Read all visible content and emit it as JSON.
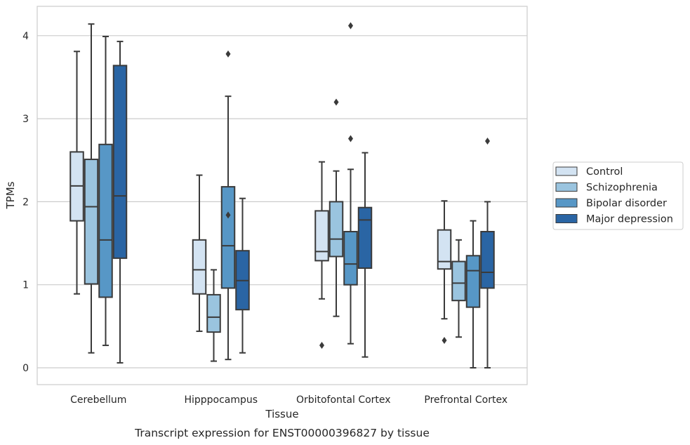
{
  "chart_data": {
    "type": "boxplot",
    "caption": "Transcript expression for ENST00000396827 by tissue",
    "xlabel": "Tissue",
    "ylabel": "TPMs",
    "ylim": [
      -0.2,
      4.37
    ],
    "yticks": [
      0,
      1,
      2,
      3,
      4
    ],
    "grid": "horizontal",
    "legend_position": "right",
    "categories": [
      "Cerebellum",
      "Hipppocampus",
      "Orbitofontal Cortex",
      "Prefrontal Cortex"
    ],
    "series": [
      {
        "name": "Control",
        "color": "#d3e3f2",
        "boxes": [
          {
            "whislo": 0.89,
            "q1": 1.77,
            "med": 2.19,
            "q3": 2.6,
            "whishi": 3.81,
            "fliers": []
          },
          {
            "whislo": 0.44,
            "q1": 0.89,
            "med": 1.18,
            "q3": 1.54,
            "whishi": 2.32,
            "fliers": []
          },
          {
            "whislo": 0.83,
            "q1": 1.29,
            "med": 1.4,
            "q3": 1.89,
            "whishi": 2.48,
            "fliers": [
              0.27
            ]
          },
          {
            "whislo": 0.59,
            "q1": 1.19,
            "med": 1.28,
            "q3": 1.66,
            "whishi": 2.01,
            "fliers": [
              0.33
            ]
          }
        ]
      },
      {
        "name": "Schizophrenia",
        "color": "#9ac4df",
        "boxes": [
          {
            "whislo": 0.18,
            "q1": 1.01,
            "med": 1.94,
            "q3": 2.51,
            "whishi": 4.14,
            "fliers": []
          },
          {
            "whislo": 0.08,
            "q1": 0.43,
            "med": 0.61,
            "q3": 0.88,
            "whishi": 1.18,
            "fliers": []
          },
          {
            "whislo": 0.62,
            "q1": 1.34,
            "med": 1.55,
            "q3": 2.0,
            "whishi": 2.37,
            "fliers": [
              3.2
            ]
          },
          {
            "whislo": 0.37,
            "q1": 0.81,
            "med": 1.02,
            "q3": 1.28,
            "whishi": 1.54,
            "fliers": []
          }
        ]
      },
      {
        "name": "Bipolar disorder",
        "color": "#5797c6",
        "boxes": [
          {
            "whislo": 0.27,
            "q1": 0.85,
            "med": 1.54,
            "q3": 2.69,
            "whishi": 3.99,
            "fliers": []
          },
          {
            "whislo": 0.1,
            "q1": 0.96,
            "med": 1.47,
            "q3": 2.18,
            "whishi": 3.27,
            "fliers": [
              1.84,
              3.78
            ]
          },
          {
            "whislo": 0.29,
            "q1": 1.0,
            "med": 1.25,
            "q3": 1.64,
            "whishi": 2.39,
            "fliers": [
              2.76,
              4.12
            ]
          },
          {
            "whislo": 0.0,
            "q1": 0.73,
            "med": 1.17,
            "q3": 1.35,
            "whishi": 1.77,
            "fliers": []
          }
        ]
      },
      {
        "name": "Major depression",
        "color": "#2a65a4",
        "boxes": [
          {
            "whislo": 0.06,
            "q1": 1.32,
            "med": 2.07,
            "q3": 3.64,
            "whishi": 3.93,
            "fliers": []
          },
          {
            "whislo": 0.18,
            "q1": 0.7,
            "med": 1.05,
            "q3": 1.41,
            "whishi": 2.04,
            "fliers": []
          },
          {
            "whislo": 0.13,
            "q1": 1.2,
            "med": 1.78,
            "q3": 1.93,
            "whishi": 2.59,
            "fliers": []
          },
          {
            "whislo": 0.0,
            "q1": 0.96,
            "med": 1.15,
            "q3": 1.64,
            "whishi": 2.0,
            "fliers": [
              2.73
            ]
          }
        ]
      }
    ]
  }
}
